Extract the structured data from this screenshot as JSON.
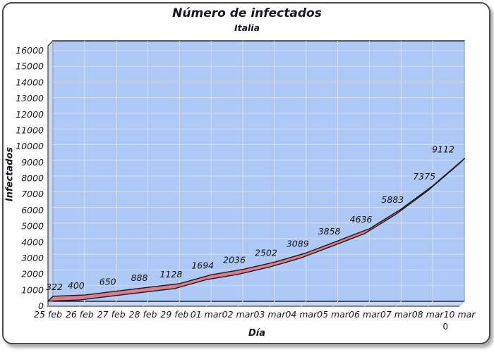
{
  "page": {
    "corner_value": "0"
  },
  "chart_data": {
    "type": "line",
    "style": "3d-ribbon",
    "title": "Número de infectados",
    "subtitle": "Italia",
    "xlabel": "Día",
    "ylabel": "Infectados",
    "categories": [
      "25 feb",
      "26 feb",
      "27 feb",
      "28 feb",
      "29 feb",
      "01 mar",
      "02 mar",
      "03 mar",
      "04 mar",
      "05 mar",
      "06 mar",
      "07 mar",
      "08 mar",
      "10 mar"
    ],
    "values": [
      322,
      400,
      650,
      888,
      1128,
      1694,
      2036,
      2502,
      3089,
      3858,
      4636,
      5883,
      7375,
      9112
    ],
    "data_labels": [
      "322",
      "400",
      "650",
      "888",
      "1128",
      "1694",
      "2036",
      "2502",
      "3089",
      "3858",
      "4636",
      "5883",
      "7375",
      "9112"
    ],
    "ylim": [
      0,
      16000
    ],
    "ytick_step": 1000,
    "grid": true,
    "legend": "none",
    "colors": {
      "back_wall": "#aec9f6",
      "side_wall": "#c6d8fa",
      "grid": "#d9dde6",
      "series_fill": "#dd7d8c",
      "series_stroke": "#1a1a1a",
      "axis": "#1a1a1a",
      "text": "#17171f",
      "frame_border": "#4b4b4b"
    }
  }
}
